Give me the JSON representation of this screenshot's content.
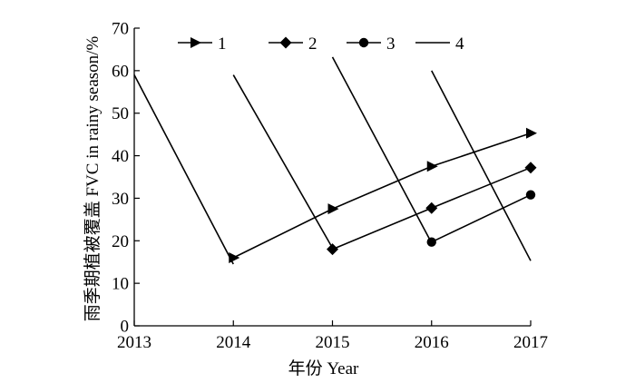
{
  "chart_data": {
    "type": "line",
    "title": "",
    "xlabel": "年份 Year",
    "ylabel": "雨季期植被覆盖 FVC in rainy season/%",
    "xlim": [
      2013,
      2017
    ],
    "ylim": [
      0,
      70
    ],
    "x_ticks": [
      "2013",
      "2014",
      "2015",
      "2016",
      "2017"
    ],
    "y_ticks": [
      "0",
      "10",
      "20",
      "30",
      "40",
      "50",
      "60",
      "70"
    ],
    "grid": false,
    "legend_position": "top",
    "series": [
      {
        "name": "1",
        "marker": "triangle-right",
        "points": [
          [
            2014,
            16
          ],
          [
            2015,
            27.5
          ],
          [
            2016,
            37.5
          ],
          [
            2017,
            45.3
          ]
        ]
      },
      {
        "name": "2",
        "marker": "diamond",
        "points": [
          [
            2015,
            18
          ],
          [
            2016,
            27.7
          ],
          [
            2017,
            37.2
          ]
        ]
      },
      {
        "name": "3",
        "marker": "circle",
        "points": [
          [
            2016,
            19.7
          ],
          [
            2017,
            30.8
          ]
        ]
      },
      {
        "name": "4",
        "marker": "none",
        "segments": [
          [
            [
              2013,
              59
            ],
            [
              2014,
              14.5
            ]
          ],
          [
            [
              2014,
              59
            ],
            [
              2015,
              18.3
            ]
          ],
          [
            [
              2015,
              63.2
            ],
            [
              2016,
              19.5
            ]
          ],
          [
            [
              2016,
              60
            ],
            [
              2017,
              15.3
            ]
          ]
        ]
      }
    ]
  }
}
